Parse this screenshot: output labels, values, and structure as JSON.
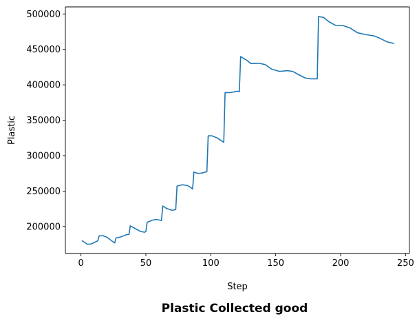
{
  "chart_data": {
    "type": "line",
    "title": "Plastic Collected good",
    "xlabel": "Step",
    "ylabel": "Plastic",
    "xlim": [
      -12,
      253
    ],
    "ylim": [
      162000,
      510000
    ],
    "xticks": [
      0,
      50,
      100,
      150,
      200,
      250
    ],
    "yticks": [
      200000,
      250000,
      300000,
      350000,
      400000,
      450000,
      500000
    ],
    "grid": false,
    "line_color": "#1f77b4",
    "series": [
      {
        "x": [
          1,
          5,
          8,
          12,
          13,
          14,
          17,
          20,
          25,
          26,
          27,
          30,
          33,
          35,
          37,
          38,
          39,
          42,
          46,
          49,
          50,
          51,
          55,
          58,
          61,
          62,
          63,
          66,
          70,
          72,
          73,
          74,
          78,
          82,
          85,
          86,
          87,
          90,
          93,
          96,
          97,
          98,
          101,
          105,
          109,
          110,
          111,
          115,
          119,
          121,
          122,
          123,
          127,
          131,
          137,
          142,
          147,
          153,
          159,
          163,
          168,
          173,
          177,
          181,
          182,
          183,
          187,
          191,
          196,
          202,
          207,
          213,
          219,
          226,
          231,
          236,
          241
        ],
        "y": [
          180000,
          175000,
          175500,
          179000,
          180000,
          187000,
          187000,
          185000,
          178000,
          177000,
          184000,
          185000,
          187000,
          188500,
          189000,
          201000,
          200000,
          197000,
          193000,
          192000,
          193000,
          206000,
          209000,
          210000,
          209000,
          208500,
          229000,
          225500,
          223000,
          223500,
          224000,
          257000,
          259000,
          258000,
          254500,
          253000,
          277000,
          275000,
          275500,
          277000,
          277500,
          328000,
          328000,
          325000,
          320000,
          319000,
          389000,
          389000,
          390500,
          391000,
          390500,
          440000,
          435500,
          430000,
          430500,
          428500,
          422000,
          419000,
          420000,
          419000,
          414000,
          409500,
          408500,
          408500,
          408500,
          496500,
          495000,
          489000,
          484000,
          483500,
          480500,
          473500,
          471000,
          469000,
          465000,
          460500,
          458500
        ]
      }
    ]
  }
}
